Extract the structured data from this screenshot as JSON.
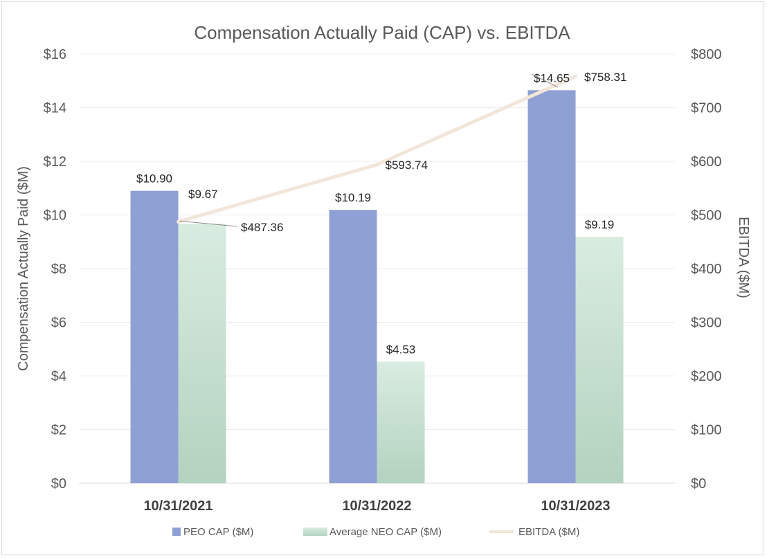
{
  "chart_data": {
    "type": "bar",
    "title": "Compensation Actually Paid (CAP) vs. EBITDA",
    "categories": [
      "10/31/2021",
      "10/31/2022",
      "10/31/2023"
    ],
    "ylabel": "Compensation Actually Paid ($M)",
    "y2label": "EBITDA ($M)",
    "ylim": [
      0,
      16
    ],
    "y2lim": [
      0,
      800
    ],
    "yticks": [
      "$0",
      "$2",
      "$4",
      "$6",
      "$8",
      "$10",
      "$12",
      "$14",
      "$16"
    ],
    "y2ticks": [
      "$0",
      "$100",
      "$200",
      "$300",
      "$400",
      "$500",
      "$600",
      "$700",
      "$800"
    ],
    "grid": true,
    "legend_position": "bottom",
    "series": [
      {
        "name": "PEO CAP ($M)",
        "type": "bar",
        "axis": "left",
        "color": "#8fa0d4",
        "values": [
          10.9,
          10.19,
          14.65
        ],
        "labels": [
          "$10.90",
          "$10.19",
          "$14.65"
        ]
      },
      {
        "name": "Average NEO CAP ($M)",
        "type": "bar",
        "axis": "left",
        "color": "#c9e3d4",
        "values": [
          9.67,
          4.53,
          9.19
        ],
        "labels": [
          "$9.67",
          "$4.53",
          "$9.19"
        ]
      },
      {
        "name": "EBITDA ($M)",
        "type": "line",
        "axis": "right",
        "color": "#f2e6da",
        "values": [
          487.36,
          593.74,
          758.31
        ],
        "labels": [
          "$487.36",
          "$593.74",
          "$758.31"
        ]
      }
    ]
  }
}
